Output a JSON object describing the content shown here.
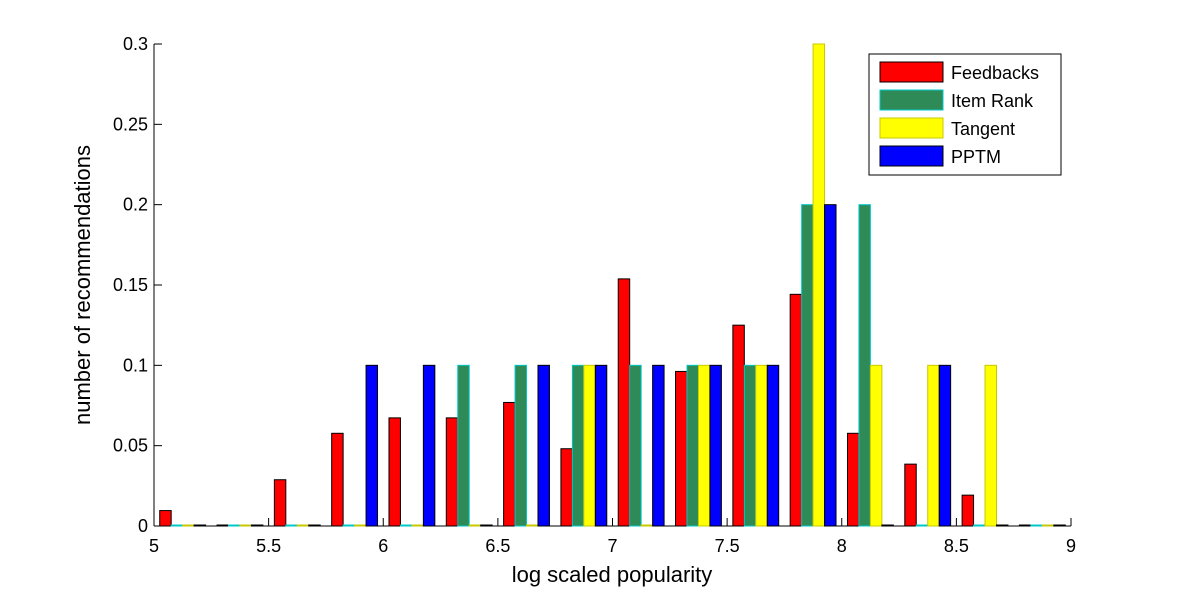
{
  "chart_data": {
    "type": "bar",
    "xlabel": "log scaled popularity",
    "ylabel": "number of recommendations",
    "xlim": [
      5,
      9
    ],
    "ylim": [
      0,
      0.3
    ],
    "xticks": [
      "5",
      "5.5",
      "6",
      "6.5",
      "7",
      "7.5",
      "8",
      "8.5",
      "9"
    ],
    "yticks": [
      "0",
      "0.05",
      "0.1",
      "0.15",
      "0.2",
      "0.25",
      "0.3"
    ],
    "bin_centers": [
      5.125,
      5.375,
      5.625,
      5.875,
      6.125,
      6.375,
      6.625,
      6.875,
      7.125,
      7.375,
      7.625,
      7.875,
      8.125,
      8.375,
      8.625,
      8.875
    ],
    "legend_position": "top-right",
    "series": [
      {
        "name": "Feedbacks",
        "color": "#ff0000",
        "edge": "#000000",
        "values": [
          0.0096,
          0,
          0.0288,
          0.0577,
          0.0673,
          0.0673,
          0.0769,
          0.0481,
          0.1538,
          0.0962,
          0.125,
          0.1442,
          0.0577,
          0.0385,
          0.0192,
          0
        ]
      },
      {
        "name": "Item Rank",
        "color": "#2e8b57",
        "edge": "#00c8c8",
        "values": [
          0,
          0,
          0,
          0,
          0,
          0.1,
          0.1,
          0.1,
          0.1,
          0.1,
          0.1,
          0.2,
          0.2,
          0,
          0,
          0
        ]
      },
      {
        "name": "Tangent",
        "color": "#ffff00",
        "edge": "#c8c800",
        "values": [
          0,
          0,
          0,
          0,
          0,
          0,
          0,
          0.1,
          0,
          0.1,
          0.1,
          0.3,
          0.1,
          0.1,
          0.1,
          0
        ]
      },
      {
        "name": "PPTM",
        "color": "#0000ff",
        "edge": "#000000",
        "values": [
          0,
          0,
          0,
          0.1,
          0.1,
          0,
          0.1,
          0.1,
          0.1,
          0.1,
          0.1,
          0.2,
          0,
          0.1,
          0,
          0
        ]
      }
    ]
  }
}
